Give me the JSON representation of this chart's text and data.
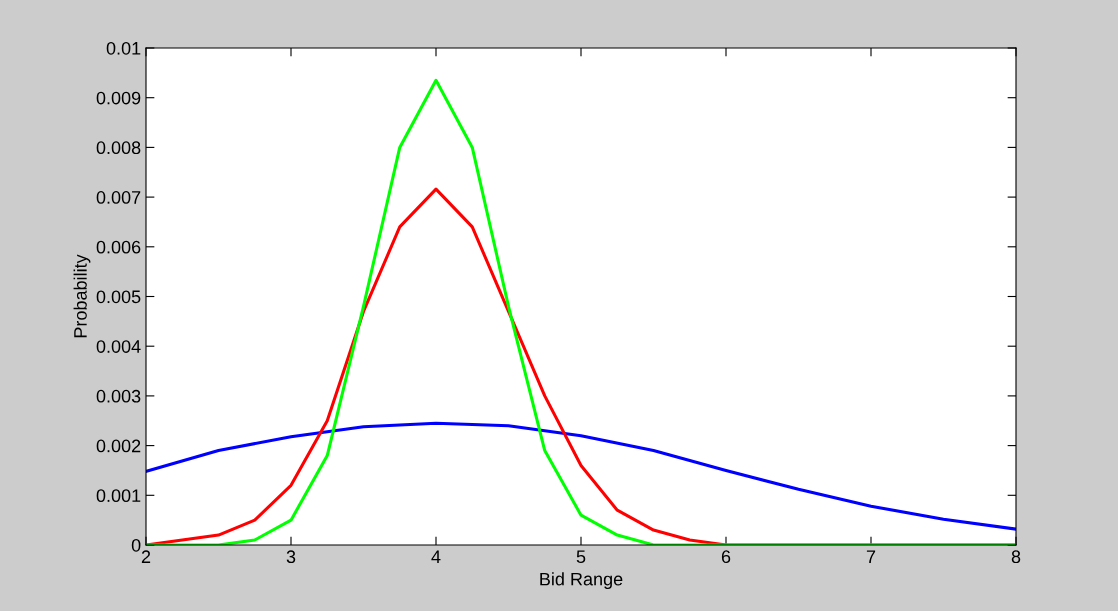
{
  "chart_data": {
    "type": "line",
    "xlabel": "Bid Range",
    "ylabel": "Probability",
    "xlim": [
      2,
      8
    ],
    "xticks": [
      2,
      3,
      4,
      5,
      6,
      7,
      8
    ],
    "ylim": [
      0,
      0.01
    ],
    "yticks": [
      0,
      0.001,
      0.002,
      0.003,
      0.004,
      0.005,
      0.006,
      0.007,
      0.008,
      0.009,
      0.01
    ],
    "grid": false,
    "legend": false,
    "series": [
      {
        "color": "#0000ff",
        "x": [
          2,
          2.5,
          3,
          3.5,
          4,
          4.5,
          5,
          5.5,
          6,
          6.5,
          7,
          7.5,
          8
        ],
        "values": [
          0.00148,
          0.0019,
          0.00218,
          0.00238,
          0.00245,
          0.0024,
          0.0022,
          0.0019,
          0.0015,
          0.00112,
          0.00078,
          0.00052,
          0.00032
        ]
      },
      {
        "color": "#ff0000",
        "x": [
          2,
          2.25,
          2.5,
          2.75,
          3,
          3.25,
          3.5,
          3.75,
          4,
          4.25,
          4.5,
          4.75,
          5,
          5.25,
          5.5,
          5.75,
          6,
          7,
          8
        ],
        "values": [
          0,
          0.0001,
          0.0002,
          0.0005,
          0.0012,
          0.0025,
          0.0047,
          0.0064,
          0.00716,
          0.0064,
          0.0047,
          0.003,
          0.0016,
          0.0007,
          0.0003,
          0.0001,
          0,
          0,
          0
        ]
      },
      {
        "color": "#00ff00",
        "x": [
          2,
          2.5,
          2.75,
          3,
          3.25,
          3.5,
          3.75,
          4,
          4.25,
          4.5,
          4.75,
          5,
          5.25,
          5.5,
          6,
          7,
          8
        ],
        "values": [
          0,
          0,
          0.0001,
          0.0005,
          0.0018,
          0.0048,
          0.008,
          0.00935,
          0.008,
          0.0048,
          0.0019,
          0.0006,
          0.0002,
          0,
          0,
          0,
          0
        ]
      }
    ]
  }
}
